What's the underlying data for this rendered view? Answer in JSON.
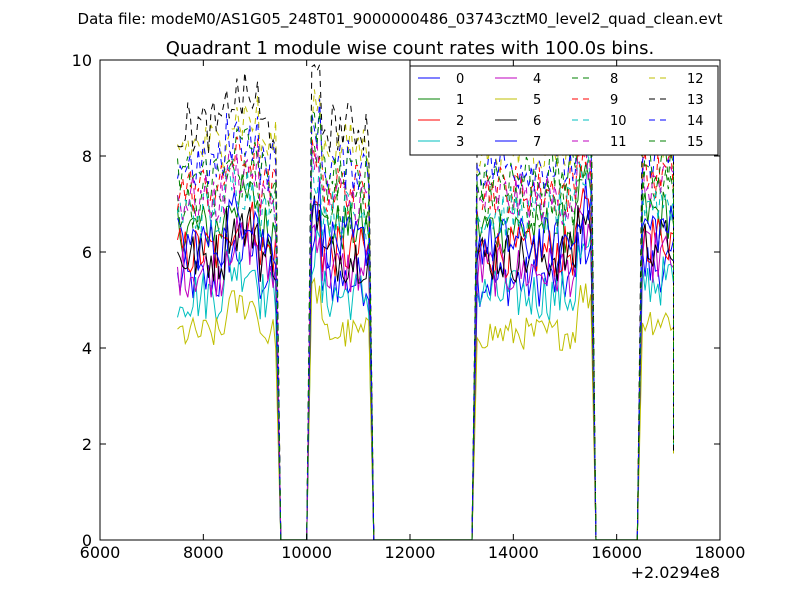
{
  "suptitle": "Data file: modeM0/AS1G05_248T01_9000000486_03743cztM0_level2_quad_clean.evt",
  "chart_data": {
    "type": "line",
    "title": "Quadrant 1 module wise count rates with 100.0s bins.",
    "xlabel": "",
    "ylabel": "",
    "x_offset_label": "+2.0294e8",
    "xlim": [
      6000,
      18000
    ],
    "ylim": [
      0,
      10
    ],
    "xticks": [
      "6000",
      "8000",
      "10000",
      "12000",
      "14000",
      "16000",
      "18000"
    ],
    "yticks": [
      "0",
      "2",
      "4",
      "6",
      "8",
      "10"
    ],
    "grid": false,
    "legend_position": "top-right",
    "legend_columns": 4,
    "segments": [
      {
        "x_start": 7500,
        "x_end": 9400,
        "on_end": 9500
      },
      {
        "x_start": 10100,
        "x_end": 11200,
        "on_end": 11300
      },
      {
        "x_start": 13300,
        "x_end": 15500,
        "on_end": 15600
      },
      {
        "x_start": 16500,
        "x_end": 17100,
        "on_end": 17100
      }
    ],
    "baseline_segments": [
      {
        "x_start": 9500,
        "x_end": 10000
      },
      {
        "x_start": 11300,
        "x_end": 13200
      },
      {
        "x_start": 15600,
        "x_end": 16400
      }
    ],
    "series": [
      {
        "name": "0",
        "color": "#0000ff",
        "dashed": false,
        "level": 5.4
      },
      {
        "name": "1",
        "color": "#008000",
        "dashed": false,
        "level": 6.5
      },
      {
        "name": "2",
        "color": "#ff0000",
        "dashed": false,
        "level": 6.0
      },
      {
        "name": "3",
        "color": "#00bfbf",
        "dashed": false,
        "level": 5.1
      },
      {
        "name": "4",
        "color": "#bf00bf",
        "dashed": false,
        "level": 5.6
      },
      {
        "name": "5",
        "color": "#bfbf00",
        "dashed": false,
        "level": 4.3
      },
      {
        "name": "6",
        "color": "#000000",
        "dashed": false,
        "level": 5.9
      },
      {
        "name": "7",
        "color": "#0000ff",
        "dashed": false,
        "level": 6.2
      },
      {
        "name": "8",
        "color": "#008000",
        "dashed": true,
        "level": 7.0
      },
      {
        "name": "9",
        "color": "#ff0000",
        "dashed": true,
        "level": 7.3
      },
      {
        "name": "10",
        "color": "#00bfbf",
        "dashed": true,
        "level": 6.8
      },
      {
        "name": "11",
        "color": "#bf00bf",
        "dashed": true,
        "level": 7.1
      },
      {
        "name": "12",
        "color": "#bfbf00",
        "dashed": true,
        "level": 8.2
      },
      {
        "name": "13",
        "color": "#000000",
        "dashed": true,
        "level": 8.6
      },
      {
        "name": "14",
        "color": "#0000ff",
        "dashed": true,
        "level": 7.8
      },
      {
        "name": "15",
        "color": "#008000",
        "dashed": true,
        "level": 7.6
      }
    ]
  }
}
